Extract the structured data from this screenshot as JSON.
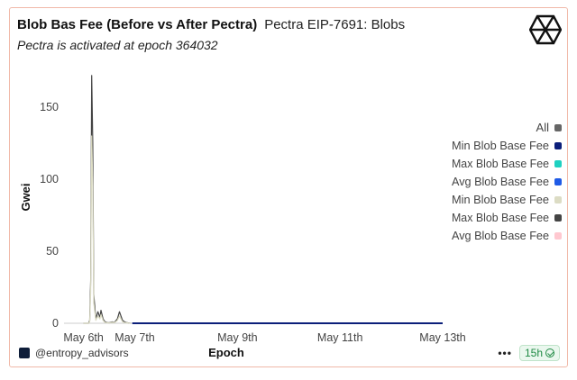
{
  "header": {
    "title": "Blob Bas Fee (Before vs After Pectra)",
    "subtitle": "Pectra EIP-7691: Blobs",
    "note": "Pectra is activated at epoch 364032"
  },
  "footer": {
    "handle": "@entropy_advisors",
    "more": "•••",
    "age": "15h"
  },
  "colors": {
    "frame_border": "#f0b8a8",
    "all": "#666666",
    "min_after": "#0b1f7a",
    "max_after": "#1fd1c1",
    "avg_after": "#1f5be6",
    "min_before": "#dcdcc4",
    "max_before": "#444444",
    "avg_before": "#ffc8d0"
  },
  "chart_data": {
    "type": "line",
    "xlabel": "Epoch",
    "ylabel": "Gwei",
    "ylim": [
      0,
      175
    ],
    "yticks": [
      0,
      50,
      100,
      150
    ],
    "xticks": [
      "May 6th",
      "May 7th",
      "May 9th",
      "May 11th",
      "May 13th"
    ],
    "x_tick_days": [
      6,
      7,
      9,
      11,
      13
    ],
    "xlim_days": [
      5.62,
      13.0
    ],
    "legend_position": "right",
    "legend": [
      {
        "label": "All",
        "color_key": "all"
      },
      {
        "label": "Min Blob Base Fee",
        "color_key": "min_after"
      },
      {
        "label": "Max Blob Base Fee",
        "color_key": "max_after"
      },
      {
        "label": "Avg Blob Base Fee",
        "color_key": "avg_after"
      },
      {
        "label": "Min Blob Base Fee",
        "color_key": "min_before"
      },
      {
        "label": "Max Blob Base Fee",
        "color_key": "max_before"
      },
      {
        "label": "Avg Blob Base Fee",
        "color_key": "avg_before"
      }
    ],
    "series": [
      {
        "color_key": "max_before",
        "x_days": [
          6.0,
          6.1,
          6.12,
          6.14,
          6.16,
          6.18,
          6.2,
          6.24,
          6.28,
          6.32,
          6.34,
          6.38,
          6.42,
          6.46,
          6.5,
          6.56,
          6.6,
          6.66,
          6.7,
          6.76,
          6.8,
          6.84,
          6.88,
          6.92
        ],
        "values": [
          0,
          0,
          2,
          30,
          172,
          125,
          20,
          3,
          8,
          4,
          9,
          3,
          1,
          0.5,
          0.3,
          1,
          0.5,
          3,
          8,
          2,
          1,
          0.5,
          0.2,
          0
        ]
      },
      {
        "color_key": "min_before",
        "x_days": [
          6.0,
          6.1,
          6.12,
          6.14,
          6.16,
          6.18,
          6.2,
          6.24,
          6.28,
          6.32,
          6.34,
          6.38,
          6.42,
          6.46,
          6.5,
          6.56,
          6.6,
          6.66,
          6.7,
          6.76,
          6.8,
          6.84,
          6.88,
          6.92
        ],
        "values": [
          0,
          0,
          1,
          22,
          130,
          95,
          14,
          2,
          5,
          3,
          6,
          2,
          0.5,
          0.3,
          0.2,
          0.6,
          0.3,
          2,
          5,
          1,
          0.5,
          0.3,
          0.1,
          0
        ]
      },
      {
        "color_key": "min_after",
        "x_days": [
          6.95,
          13.0
        ],
        "values": [
          0,
          0
        ]
      }
    ]
  }
}
